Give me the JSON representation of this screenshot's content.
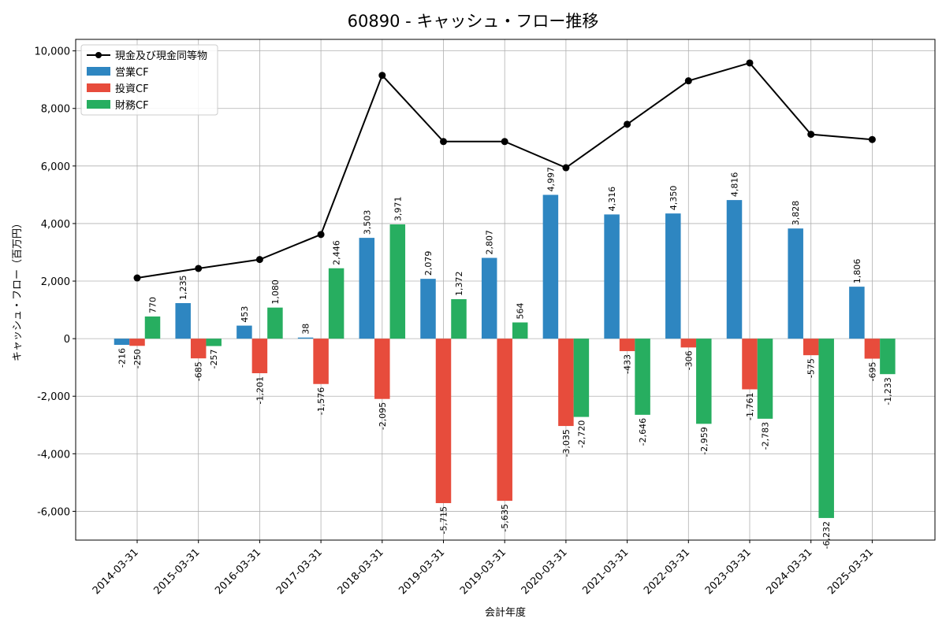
{
  "chart_data": {
    "type": "bar",
    "title": "60890 - キャッシュ・フロー推移",
    "xlabel": "会計年度",
    "ylabel": "キャッシュ・フロー（百万円）",
    "categories": [
      "2014-03-31",
      "2015-03-31",
      "2016-03-31",
      "2017-03-31",
      "2018-03-31",
      "2019-03-31",
      "2019-03-31",
      "2020-03-31",
      "2021-03-31",
      "2022-03-31",
      "2023-03-31",
      "2024-03-31",
      "2025-03-31"
    ],
    "ylim": [
      -7000,
      10400
    ],
    "yticks": [
      -6000,
      -4000,
      -2000,
      0,
      2000,
      4000,
      6000,
      8000,
      10000
    ],
    "ytick_labels": [
      "-6,000",
      "-4,000",
      "-2,000",
      "0",
      "2,000",
      "4,000",
      "6,000",
      "8,000",
      "10,000"
    ],
    "grid": true,
    "legend_position": "top-left",
    "series": [
      {
        "name": "営業CF",
        "kind": "bar",
        "color": "#2e86c1",
        "values": [
          -216,
          1235,
          453,
          38,
          3503,
          2079,
          2807,
          4997,
          4316,
          4350,
          4816,
          3828,
          1806
        ],
        "labels": [
          "-216",
          "1,235",
          "453",
          "38",
          "3,503",
          "2,079",
          "2,807",
          "4,997",
          "4,316",
          "4,350",
          "4,816",
          "3,828",
          "1,806"
        ]
      },
      {
        "name": "投資CF",
        "kind": "bar",
        "color": "#e74c3c",
        "values": [
          -250,
          -685,
          -1201,
          -1576,
          -2095,
          -5715,
          -5635,
          -3035,
          -433,
          -306,
          -1761,
          -575,
          -695
        ],
        "labels": [
          "-250",
          "-685",
          "-1,201",
          "-1,576",
          "-2,095",
          "-5,715",
          "-5,635",
          "-3,035",
          "-433",
          "-306",
          "-1,761",
          "-575",
          "-695"
        ]
      },
      {
        "name": "財務CF",
        "kind": "bar",
        "color": "#27ae60",
        "values": [
          770,
          -257,
          1080,
          2446,
          3971,
          1372,
          564,
          -2720,
          -2646,
          -2959,
          -2783,
          -6232,
          -1233
        ],
        "labels": [
          "770",
          "-257",
          "1,080",
          "2,446",
          "3,971",
          "1,372",
          "564",
          "-2,720",
          "-2,646",
          "-2,959",
          "-2,783",
          "-6,232",
          "-1,233"
        ]
      },
      {
        "name": "現金及び現金同等物",
        "kind": "line",
        "color": "#000000",
        "values": [
          2110,
          2440,
          2750,
          3620,
          9150,
          6850,
          6850,
          5940,
          7450,
          8960,
          9580,
          7100,
          6920
        ]
      }
    ]
  }
}
